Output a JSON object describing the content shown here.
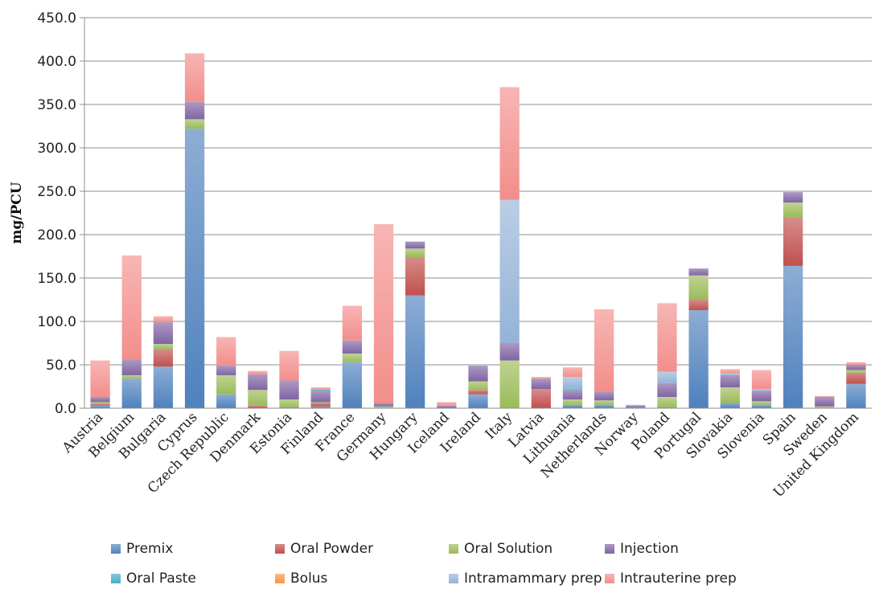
{
  "chart_data": {
    "type": "bar",
    "stacked": true,
    "ylabel": "mg/PCU",
    "ylim": [
      0,
      450
    ],
    "yticks": [
      "0.0",
      "50.0",
      "100.0",
      "150.0",
      "200.0",
      "250.0",
      "300.0",
      "350.0",
      "400.0",
      "450.0"
    ],
    "grid": true,
    "legend_position": "bottom",
    "categories": [
      "Austria",
      "Belgium",
      "Bulgaria",
      "Cyprus",
      "Czech Republic",
      "Denmark",
      "Estonia",
      "Finland",
      "France",
      "Germany",
      "Hungary",
      "Iceland",
      "Ireland",
      "Italy",
      "Latvia",
      "Lithuania",
      "Netherlands",
      "Norway",
      "Poland",
      "Portugal",
      "Slovakia",
      "Slovenia",
      "Spain",
      "Sweden",
      "United Kingdom"
    ],
    "series": [
      {
        "name": "Premix",
        "color": "#4f81bd",
        "values": [
          3,
          34,
          48,
          322,
          16,
          0,
          1,
          2,
          53,
          0,
          130,
          0,
          16,
          0,
          0,
          4,
          4,
          1,
          1,
          113,
          6,
          4,
          164,
          0,
          28
        ]
      },
      {
        "name": "Oral Powder",
        "color": "#c0504d",
        "values": [
          2,
          0,
          20,
          0,
          0,
          3,
          0,
          4,
          0,
          0,
          44,
          0,
          5,
          0,
          22,
          0,
          0,
          0,
          0,
          12,
          0,
          0,
          56,
          0,
          13
        ]
      },
      {
        "name": "Oral Solution",
        "color": "#9bbb59",
        "values": [
          2,
          4,
          6,
          11,
          22,
          18,
          9,
          1,
          10,
          2,
          10,
          0,
          10,
          55,
          0,
          6,
          5,
          0,
          12,
          28,
          18,
          4,
          17,
          2,
          3
        ]
      },
      {
        "name": "Injection",
        "color": "#8064a2",
        "values": [
          6,
          18,
          25,
          20,
          11,
          18,
          22,
          13,
          15,
          4,
          8,
          3,
          18,
          20,
          12,
          11,
          10,
          2,
          16,
          8,
          14,
          12,
          12,
          11,
          6
        ]
      },
      {
        "name": "Oral Paste",
        "color": "#4bacc6",
        "values": [
          0,
          0,
          0,
          0,
          0,
          0,
          0,
          2,
          0,
          0,
          0,
          0,
          0,
          0,
          0,
          2,
          0,
          0,
          0,
          0,
          0,
          0,
          0,
          0,
          0
        ]
      },
      {
        "name": "Bolus",
        "color": "#f79646",
        "values": [
          0,
          0,
          0,
          0,
          0,
          0,
          0,
          0,
          0,
          0,
          0,
          0,
          0,
          0,
          0,
          0,
          0,
          0,
          0,
          0,
          0,
          0,
          0,
          0,
          0
        ]
      },
      {
        "name": "Intramammary prep",
        "color": "#95b3d7",
        "values": [
          0,
          0,
          0,
          0,
          0,
          0,
          0,
          0,
          0,
          0,
          0,
          0,
          0,
          165,
          0,
          13,
          0,
          1,
          13,
          0,
          2,
          2,
          0,
          0,
          0
        ]
      },
      {
        "name": "Intrauterine prep",
        "color": "#f28e8b",
        "values": [
          42,
          120,
          7,
          56,
          33,
          4,
          34,
          2,
          40,
          206,
          0,
          4,
          0,
          130,
          2,
          11,
          95,
          0,
          79,
          0,
          5,
          22,
          0,
          1,
          3
        ]
      }
    ]
  }
}
